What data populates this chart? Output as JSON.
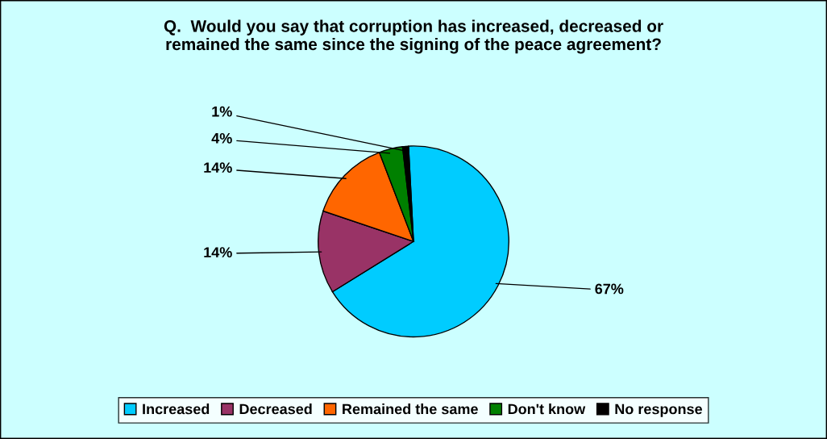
{
  "chart_data": {
    "type": "pie",
    "title": "Q.  Would you say that corruption has increased, decreased or remained the same since the signing of the peace agreement?",
    "categories": [
      "Increased",
      "Decreased",
      "Remained the same",
      "Don't know",
      "No response"
    ],
    "values": [
      67,
      14,
      14,
      4,
      1
    ],
    "value_labels": [
      "67%",
      "14%",
      "14%",
      "4%",
      "1%"
    ],
    "colors": [
      "#00ccff",
      "#993366",
      "#ff6600",
      "#008000",
      "#000000"
    ],
    "legend": "bottom"
  }
}
